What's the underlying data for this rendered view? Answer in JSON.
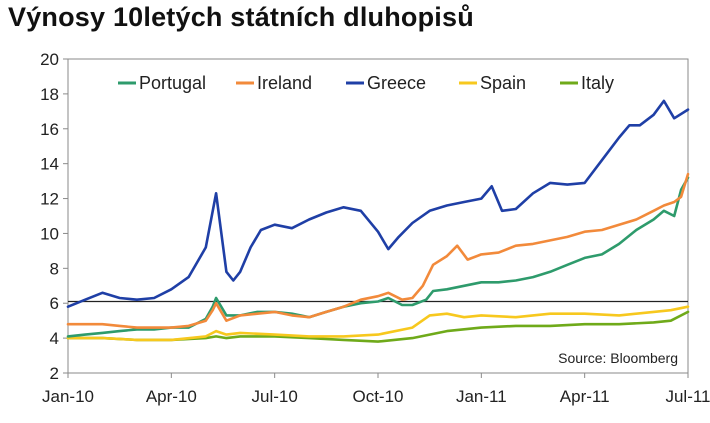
{
  "title": "Výnosy 10letých státních dluhopisů",
  "chart_data": {
    "type": "line",
    "x_tick_labels": [
      "Jan-10",
      "Apr-10",
      "Jul-10",
      "Oct-10",
      "Jan-11",
      "Apr-11",
      "Jul-11"
    ],
    "y_ticks": [
      2,
      4,
      6,
      8,
      10,
      12,
      14,
      16,
      18,
      20
    ],
    "ylim": [
      2,
      20
    ],
    "xlim": [
      0,
      18
    ],
    "reference_line": {
      "y": 6.1
    },
    "grid": false,
    "legend_placement": "top",
    "source": "Source: Bloomberg",
    "series": [
      {
        "name": "Portugal",
        "color": "#2E9B6C",
        "x": [
          0,
          0.5,
          1,
          1.5,
          2,
          2.5,
          3,
          3.5,
          4,
          4.2,
          4.3,
          4.6,
          5,
          5.5,
          6,
          6.5,
          7,
          7.5,
          8,
          8.5,
          9,
          9.3,
          9.7,
          10,
          10.4,
          10.6,
          11,
          11.5,
          12,
          12.5,
          13,
          13.5,
          14,
          14.5,
          15,
          15.5,
          16,
          16.5,
          17,
          17.3,
          17.6,
          17.8,
          18
        ],
        "y": [
          4.1,
          4.2,
          4.3,
          4.4,
          4.5,
          4.5,
          4.6,
          4.6,
          5.1,
          5.8,
          6.3,
          5.3,
          5.3,
          5.5,
          5.5,
          5.4,
          5.2,
          5.5,
          5.8,
          6.0,
          6.1,
          6.3,
          5.9,
          5.9,
          6.2,
          6.7,
          6.8,
          7.0,
          7.2,
          7.2,
          7.3,
          7.5,
          7.8,
          8.2,
          8.6,
          8.8,
          9.4,
          10.2,
          10.8,
          11.3,
          11.0,
          12.5,
          13.2
        ]
      },
      {
        "name": "Ireland",
        "color": "#F28A3B",
        "x": [
          0,
          0.5,
          1,
          1.5,
          2,
          2.5,
          3,
          3.5,
          4,
          4.2,
          4.3,
          4.6,
          5,
          5.5,
          6,
          6.5,
          7,
          7.5,
          8,
          8.5,
          9,
          9.3,
          9.7,
          10,
          10.3,
          10.6,
          11,
          11.3,
          11.6,
          12,
          12.5,
          13,
          13.5,
          14,
          14.5,
          15,
          15.5,
          16,
          16.5,
          17,
          17.3,
          17.6,
          17.8,
          18
        ],
        "y": [
          4.8,
          4.8,
          4.8,
          4.7,
          4.6,
          4.6,
          4.6,
          4.7,
          5.0,
          5.6,
          6.0,
          5.0,
          5.3,
          5.4,
          5.5,
          5.3,
          5.2,
          5.5,
          5.8,
          6.2,
          6.4,
          6.6,
          6.2,
          6.3,
          7.0,
          8.2,
          8.7,
          9.3,
          8.5,
          8.8,
          8.9,
          9.3,
          9.4,
          9.6,
          9.8,
          10.1,
          10.2,
          10.5,
          10.8,
          11.3,
          11.6,
          11.8,
          12.1,
          13.4
        ]
      },
      {
        "name": "Greece",
        "color": "#1F3FA6",
        "x": [
          0,
          0.5,
          1,
          1.5,
          2,
          2.5,
          3,
          3.5,
          4,
          4.3,
          4.6,
          4.8,
          5,
          5.3,
          5.6,
          6,
          6.5,
          7,
          7.5,
          8,
          8.5,
          9,
          9.3,
          9.6,
          10,
          10.5,
          11,
          11.5,
          12,
          12.3,
          12.6,
          13,
          13.5,
          14,
          14.5,
          15,
          15.5,
          16,
          16.3,
          16.6,
          17,
          17.3,
          17.6,
          18
        ],
        "y": [
          5.8,
          6.2,
          6.6,
          6.3,
          6.2,
          6.3,
          6.8,
          7.5,
          9.2,
          12.3,
          7.8,
          7.3,
          7.8,
          9.2,
          10.2,
          10.5,
          10.3,
          10.8,
          11.2,
          11.5,
          11.3,
          10.1,
          9.1,
          9.8,
          10.6,
          11.3,
          11.6,
          11.8,
          12.0,
          12.7,
          11.3,
          11.4,
          12.3,
          12.9,
          12.8,
          12.9,
          14.2,
          15.5,
          16.2,
          16.2,
          16.8,
          17.6,
          16.6,
          17.1
        ]
      },
      {
        "name": "Spain",
        "color": "#F7C81E",
        "x": [
          0,
          1,
          2,
          3,
          4,
          4.3,
          4.6,
          5,
          6,
          7,
          8,
          9,
          10,
          10.5,
          11,
          11.5,
          12,
          13,
          14,
          15,
          16,
          17,
          17.5,
          18
        ],
        "y": [
          4.0,
          4.0,
          3.9,
          3.9,
          4.1,
          4.4,
          4.2,
          4.3,
          4.2,
          4.1,
          4.1,
          4.2,
          4.6,
          5.3,
          5.4,
          5.2,
          5.3,
          5.2,
          5.4,
          5.4,
          5.3,
          5.5,
          5.6,
          5.8
        ]
      },
      {
        "name": "Italy",
        "color": "#6FAA1A",
        "x": [
          0,
          1,
          2,
          3,
          4,
          4.3,
          4.6,
          5,
          6,
          7,
          8,
          9,
          10,
          11,
          12,
          13,
          14,
          15,
          16,
          17,
          17.5,
          18
        ],
        "y": [
          4.0,
          4.0,
          3.9,
          3.9,
          4.0,
          4.1,
          4.0,
          4.1,
          4.1,
          4.0,
          3.9,
          3.8,
          4.0,
          4.4,
          4.6,
          4.7,
          4.7,
          4.8,
          4.8,
          4.9,
          5.0,
          5.5
        ]
      }
    ]
  }
}
